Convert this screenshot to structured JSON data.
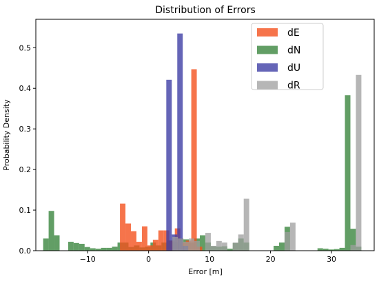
{
  "chart_data": {
    "type": "bar",
    "title": "Distribution of Errors",
    "xlabel": "Error [m]",
    "ylabel": "Probability Density",
    "xlim": [
      -18.5,
      37.0
    ],
    "ylim": [
      0,
      0.57
    ],
    "xticks": [
      -10,
      0,
      10,
      20,
      30
    ],
    "yticks": [
      0.0,
      0.1,
      0.2,
      0.3,
      0.4,
      0.5
    ],
    "grid": false,
    "legend_position": "upper-right",
    "series": [
      {
        "name": "dN",
        "color": "#2e7d32",
        "alpha": 0.75,
        "bins": [
          [
            -17.3,
            -16.4,
            0.03
          ],
          [
            -16.4,
            -15.5,
            0.098
          ],
          [
            -15.5,
            -14.6,
            0.038
          ],
          [
            -13.2,
            -12.3,
            0.022
          ],
          [
            -12.3,
            -11.4,
            0.019
          ],
          [
            -11.4,
            -10.5,
            0.017
          ],
          [
            -10.5,
            -9.6,
            0.009
          ],
          [
            -9.6,
            -8.7,
            0.006
          ],
          [
            -8.7,
            -7.8,
            0.005
          ],
          [
            -7.8,
            -6.9,
            0.007
          ],
          [
            -6.9,
            -6.0,
            0.007
          ],
          [
            -6.0,
            -5.1,
            0.01
          ],
          [
            -5.1,
            -4.2,
            0.02
          ],
          [
            -4.2,
            -3.3,
            0.02
          ],
          [
            -3.3,
            -2.4,
            0.009
          ],
          [
            -2.4,
            -1.5,
            0.013
          ],
          [
            -1.5,
            -0.6,
            0.008
          ],
          [
            -0.6,
            0.3,
            0.01
          ],
          [
            0.3,
            1.2,
            0.02
          ],
          [
            1.2,
            2.1,
            0.013
          ],
          [
            2.1,
            3.0,
            0.02
          ],
          [
            3.0,
            3.9,
            0.025
          ],
          [
            3.9,
            4.8,
            0.021
          ],
          [
            4.8,
            5.7,
            0.03
          ],
          [
            5.7,
            6.6,
            0.028
          ],
          [
            6.6,
            7.5,
            0.02
          ],
          [
            7.5,
            8.4,
            0.03
          ],
          [
            8.4,
            9.3,
            0.038
          ],
          [
            9.3,
            10.2,
            0.02
          ],
          [
            10.2,
            11.1,
            0.011
          ],
          [
            11.1,
            12.0,
            0.01
          ],
          [
            12.0,
            12.9,
            0.011
          ],
          [
            12.9,
            13.8,
            0.005
          ],
          [
            13.8,
            14.7,
            0.019
          ],
          [
            14.7,
            15.6,
            0.03
          ],
          [
            15.6,
            16.5,
            0.02
          ],
          [
            20.5,
            21.4,
            0.012
          ],
          [
            21.4,
            22.3,
            0.02
          ],
          [
            22.3,
            23.2,
            0.059
          ],
          [
            27.7,
            28.6,
            0.006
          ],
          [
            28.6,
            29.5,
            0.005
          ],
          [
            29.5,
            30.4,
            0.003
          ],
          [
            30.4,
            31.3,
            0.004
          ],
          [
            31.3,
            32.2,
            0.007
          ],
          [
            32.2,
            33.1,
            0.383
          ],
          [
            33.1,
            34.0,
            0.054
          ],
          [
            34.0,
            34.9,
            0.01
          ]
        ]
      },
      {
        "name": "dE",
        "color": "#f4511e",
        "alpha": 0.8,
        "bins": [
          [
            -4.7,
            -3.8,
            0.116
          ],
          [
            -3.8,
            -2.9,
            0.067
          ],
          [
            -2.9,
            -2.0,
            0.048
          ],
          [
            -2.0,
            -1.1,
            0.022
          ],
          [
            -1.1,
            -0.2,
            0.06
          ],
          [
            -0.2,
            0.7,
            0.013
          ],
          [
            0.7,
            1.6,
            0.027
          ],
          [
            1.6,
            2.5,
            0.05
          ],
          [
            2.5,
            3.4,
            0.05
          ],
          [
            3.4,
            4.3,
            0.025
          ],
          [
            4.3,
            5.2,
            0.055
          ],
          [
            5.2,
            6.1,
            0.02
          ],
          [
            6.1,
            7.0,
            0.025
          ],
          [
            7.0,
            7.9,
            0.447
          ],
          [
            7.9,
            8.8,
            0.01
          ]
        ]
      },
      {
        "name": "dU",
        "color": "#3f3fa5",
        "alpha": 0.8,
        "bins": [
          [
            2.9,
            3.8,
            0.421
          ],
          [
            3.8,
            4.7,
            0.04
          ],
          [
            4.7,
            5.6,
            0.535
          ],
          [
            5.6,
            6.5,
            0.012
          ]
        ]
      },
      {
        "name": "dR",
        "color": "#9e9e9e",
        "alpha": 0.75,
        "bins": [
          [
            3.9,
            4.8,
            0.034
          ],
          [
            4.8,
            5.7,
            0.03
          ],
          [
            5.7,
            6.6,
            0.022
          ],
          [
            6.6,
            7.5,
            0.03
          ],
          [
            7.5,
            8.4,
            0.024
          ],
          [
            9.3,
            10.2,
            0.044
          ],
          [
            10.2,
            11.1,
            0.012
          ],
          [
            11.1,
            12.0,
            0.024
          ],
          [
            12.0,
            12.9,
            0.02
          ],
          [
            13.8,
            14.7,
            0.02
          ],
          [
            14.7,
            15.6,
            0.04
          ],
          [
            15.6,
            16.5,
            0.128
          ],
          [
            22.3,
            23.2,
            0.046
          ],
          [
            23.2,
            24.1,
            0.069
          ],
          [
            33.1,
            34.0,
            0.014
          ],
          [
            34.0,
            34.9,
            0.433
          ]
        ]
      }
    ],
    "legend": [
      "dE",
      "dN",
      "dU",
      "dR"
    ]
  }
}
